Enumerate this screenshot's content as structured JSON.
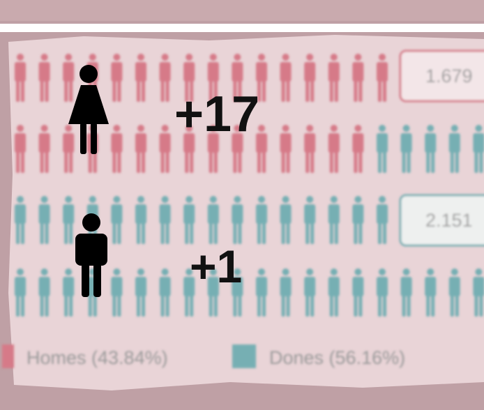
{
  "counters": [
    {
      "label": "+17"
    },
    {
      "label": "+1"
    }
  ],
  "boxes": [
    "1.679",
    "2.151"
  ],
  "legend": [
    "Homes (43.84%)",
    "Dones (56.16%)"
  ]
}
